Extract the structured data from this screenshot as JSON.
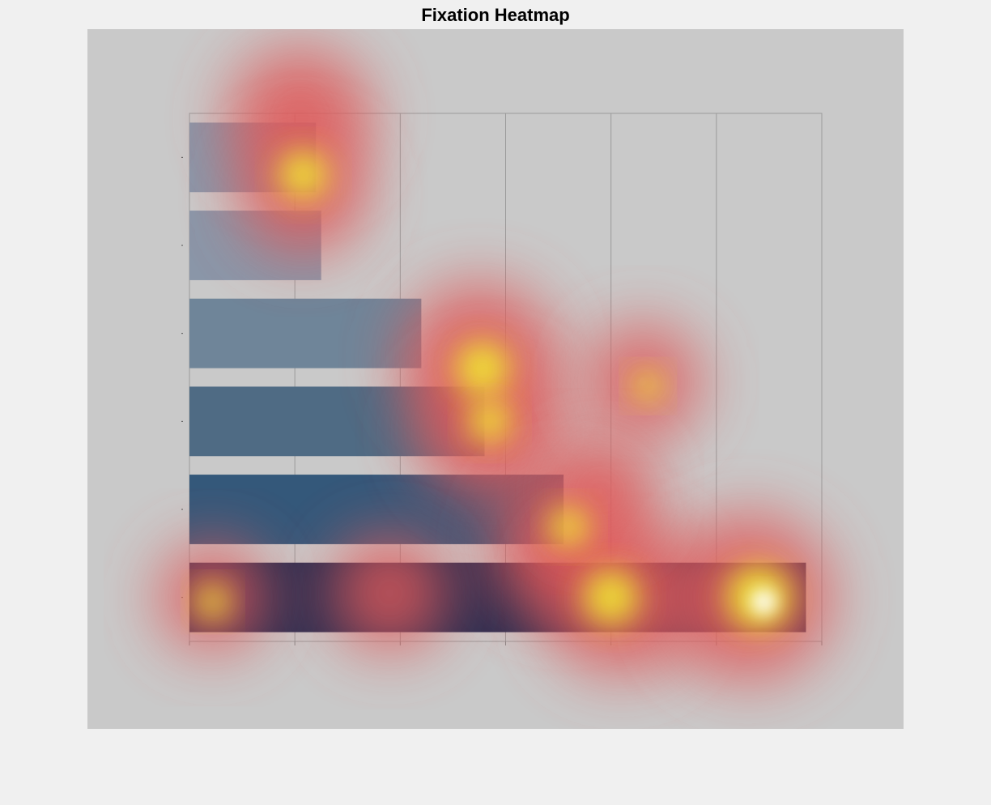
{
  "title": "Fixation Heatmap",
  "chart_data": {
    "type": "bar",
    "orientation": "horizontal",
    "categories": [
      "",
      "",
      "",
      "",
      "",
      ""
    ],
    "values": [
      1.2,
      1.25,
      2.2,
      2.8,
      3.55,
      5.85
    ],
    "xlim": [
      0,
      6
    ],
    "x_ticks": [
      0,
      1,
      2,
      3,
      4,
      5,
      6
    ],
    "grid": true,
    "bar_colors": [
      "#8a96a8",
      "#8a96a8",
      "#6f8599",
      "#4f6b84",
      "#34587a",
      "#2b2f52"
    ],
    "heatmap_overlay": {
      "colormap": "hot",
      "overlay_color": "#b4b4b4",
      "hotspot_colors": [
        "#e05a5a",
        "#f0e832",
        "#ffffff"
      ]
    }
  }
}
